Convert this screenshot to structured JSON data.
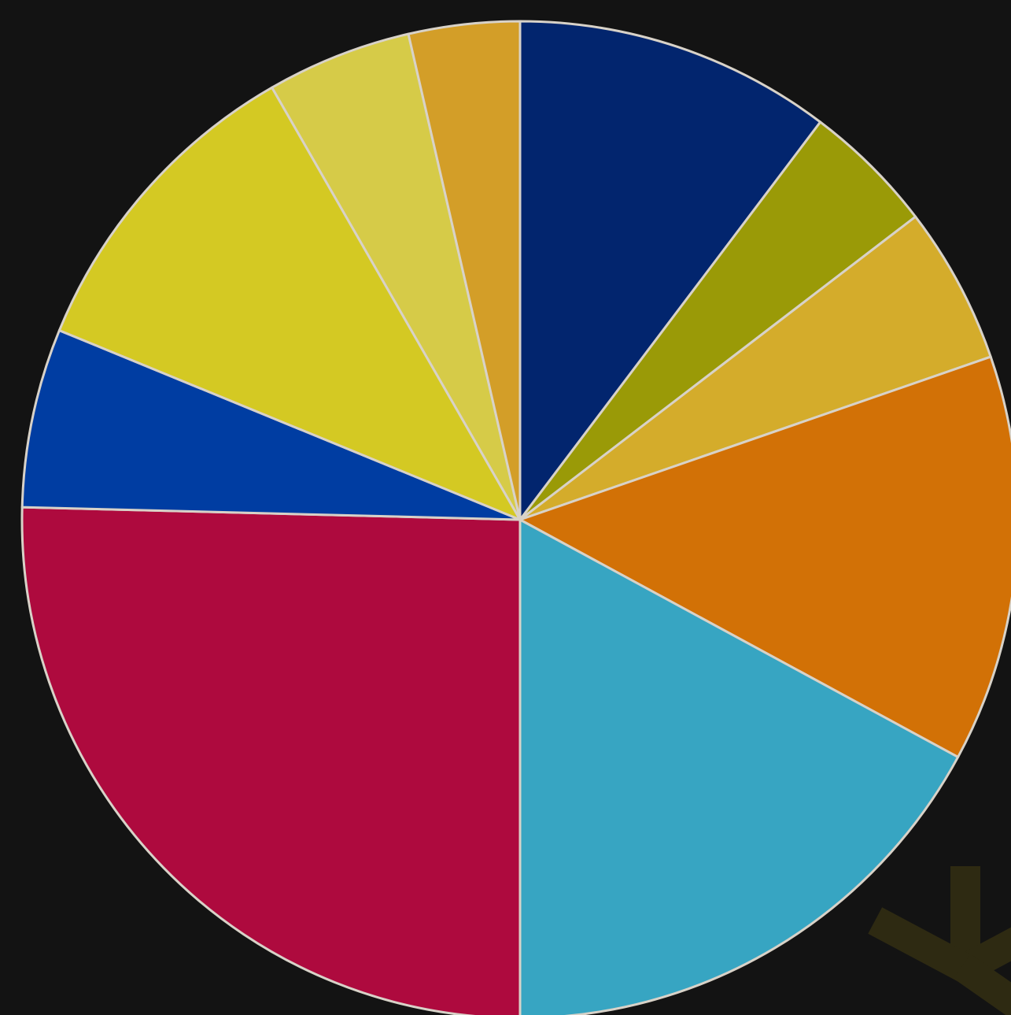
{
  "chart_data": {
    "type": "pie",
    "start": "12 o'clock",
    "direction": "clockwise",
    "legend": "none",
    "slices": [
      {
        "value": 10.3,
        "color": "#02256e"
      },
      {
        "value": 4.3,
        "color": "#9a9a07"
      },
      {
        "value": 5.1,
        "color": "#d4ac2b"
      },
      {
        "value": 13.2,
        "color": "#d27106"
      },
      {
        "value": 17.1,
        "color": "#37a5c2"
      },
      {
        "value": 25.4,
        "color": "#ae0a3e"
      },
      {
        "value": 5.8,
        "color": "#003da2"
      },
      {
        "value": 10.5,
        "color": "#d4c923"
      },
      {
        "value": 4.7,
        "color": "#d6cb48"
      },
      {
        "value": 3.6,
        "color": "#d39e28"
      }
    ]
  },
  "colors": {
    "background": "#131313",
    "slice_border": "#d8d2c8",
    "watermark": "#2e2a12"
  },
  "icons": {
    "watermark": "asterisk-icon"
  }
}
